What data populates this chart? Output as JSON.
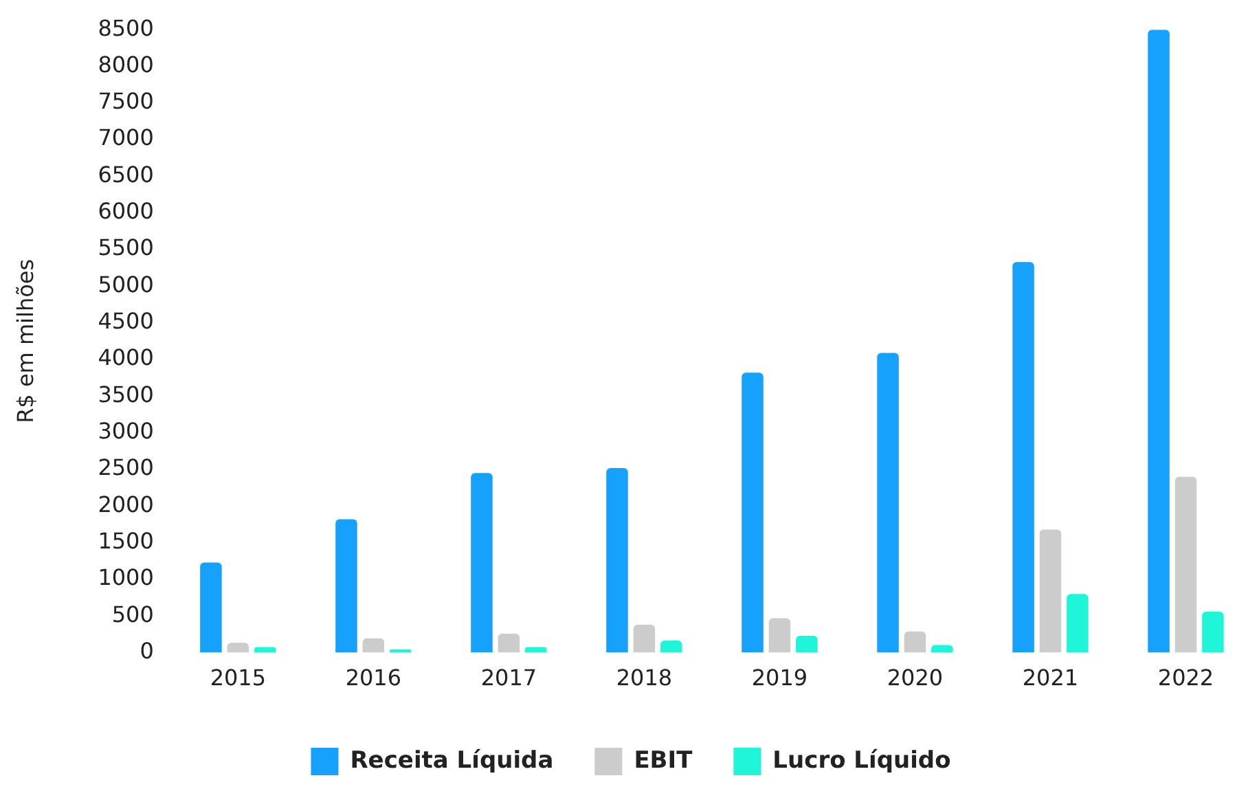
{
  "chart_data": {
    "type": "bar",
    "ylabel": "R$ em milhões",
    "categories": [
      "2015",
      "2016",
      "2017",
      "2018",
      "2019",
      "2020",
      "2021",
      "2022"
    ],
    "series": [
      {
        "name": "Receita Líquida",
        "color": "#16a2fc",
        "values": [
          1230,
          1820,
          2450,
          2520,
          3820,
          4090,
          5330,
          8500
        ]
      },
      {
        "name": "EBIT",
        "color": "#cccccc",
        "values": [
          135,
          195,
          260,
          380,
          470,
          290,
          1680,
          2400
        ]
      },
      {
        "name": "Lucro Líquido",
        "color": "#1ff5d8",
        "values": [
          75,
          45,
          75,
          165,
          230,
          105,
          800,
          560
        ]
      }
    ],
    "ylim": [
      0,
      8500
    ],
    "yticks": [
      0,
      500,
      1000,
      1500,
      2000,
      2500,
      3000,
      3500,
      4000,
      4500,
      5000,
      5500,
      6000,
      6500,
      7000,
      7500,
      8000,
      8500
    ],
    "grid": false,
    "legend": "bottom"
  }
}
